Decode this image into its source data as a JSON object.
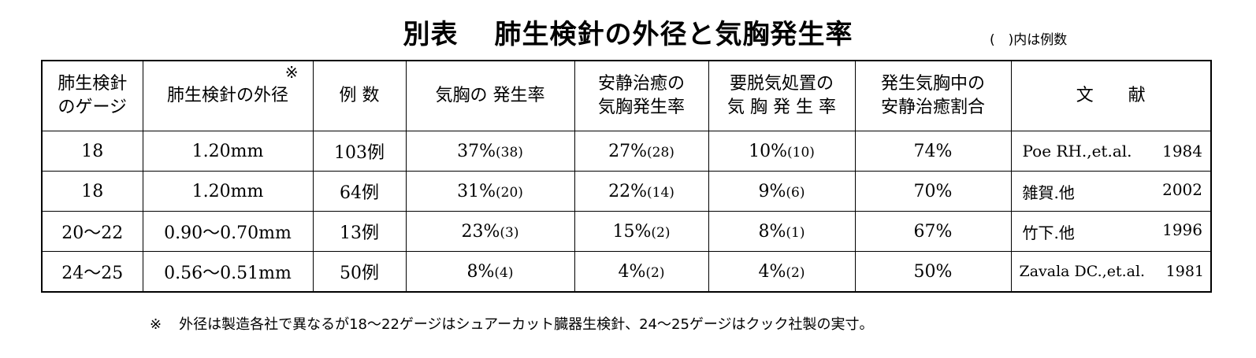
{
  "title": {
    "prefix": "別表",
    "main": "肺生検針の外径と気胸発生率"
  },
  "note": "(　)内は例数",
  "table": {
    "headers": [
      "肺生検針\nのゲージ",
      "肺生検針の外径",
      "例 数",
      "気胸の 発生率",
      "安静治癒の\n気胸発生率",
      "要脱気処置の\n気 胸 発 生 率",
      "発生気胸中の\n安静治癒割合",
      "文　　献"
    ],
    "header_mark": "※",
    "rows": [
      {
        "gauge": "18",
        "diameter": "1.20mm",
        "cases": "103例",
        "ptx": "37%",
        "ptx_n": "(38)",
        "rest": "27%",
        "rest_n": "(28)",
        "drain": "10%",
        "drain_n": "(10)",
        "ratio": "74%",
        "ref_author": "Poe RH.,et.al.",
        "ref_year": "1984"
      },
      {
        "gauge": "18",
        "diameter": "1.20mm",
        "cases": "64例",
        "ptx": "31%",
        "ptx_n": "(20)",
        "rest": "22%",
        "rest_n": "(14)",
        "drain": "9%",
        "drain_n": "(6)",
        "ratio": "70%",
        "ref_author": "雑賀.他",
        "ref_year": "2002"
      },
      {
        "gauge": "20〜22",
        "diameter": "0.90〜0.70mm",
        "cases": "13例",
        "ptx": "23%",
        "ptx_n": "(3)",
        "rest": "15%",
        "rest_n": "(2)",
        "drain": "8%",
        "drain_n": "(1)",
        "ratio": "67%",
        "ref_author": "竹下.他",
        "ref_year": "1996"
      },
      {
        "gauge": "24〜25",
        "diameter": "0.56〜0.51mm",
        "cases": "50例",
        "ptx": "8%",
        "ptx_n": "(4)",
        "rest": "4%",
        "rest_n": "(2)",
        "drain": "4%",
        "drain_n": "(2)",
        "ratio": "50%",
        "ref_author": "Zavala DC.,et.al.",
        "ref_year": "1981"
      }
    ]
  },
  "footer": {
    "mark": "※",
    "text": "外径は製造各社で異なるが18〜22ゲージはシュアーカット臓器生検針、24〜25ゲージはクック社製の実寸。"
  }
}
